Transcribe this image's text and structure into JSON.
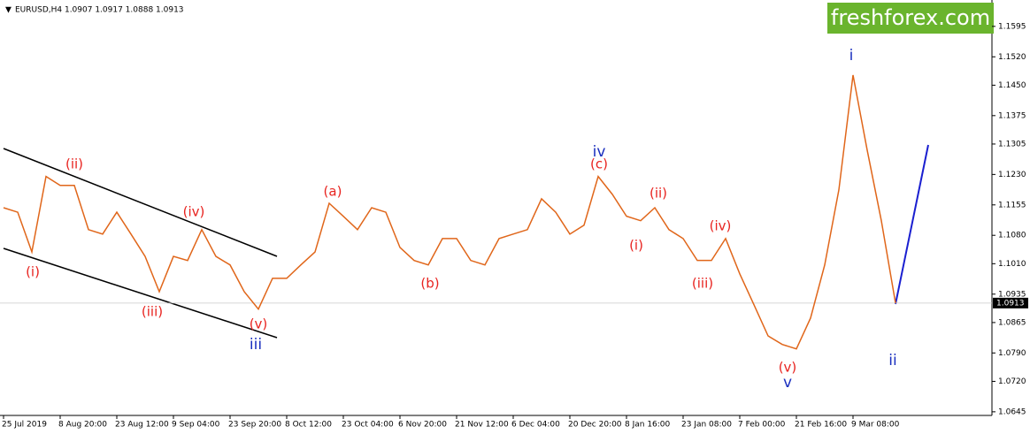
{
  "chart_data": {
    "type": "line",
    "title": "EURUSD,H4  1.0907 1.0917 1.0888 1.0913",
    "watermark": "freshforex.com",
    "color": "#e0661a",
    "categories": [
      "25 Jul 2019",
      null,
      null,
      null,
      "8 Aug 20:00",
      null,
      null,
      null,
      "23 Aug 12:00",
      null,
      null,
      null,
      "9 Sep 04:00",
      null,
      null,
      null,
      "23 Sep 20:00",
      null,
      null,
      null,
      "8 Oct 12:00",
      null,
      null,
      null,
      "23 Oct 04:00",
      null,
      null,
      null,
      "6 Nov 20:00",
      null,
      null,
      null,
      "21 Nov 12:00",
      null,
      null,
      null,
      "6 Dec 04:00",
      null,
      null,
      null,
      "20 Dec 20:00",
      null,
      null,
      null,
      "8 Jan 16:00",
      null,
      null,
      null,
      "23 Jan 08:00",
      null,
      null,
      null,
      "7 Feb 00:00",
      null,
      null,
      null,
      "21 Feb 16:00",
      null,
      null,
      null,
      "9 Mar 08:00",
      null,
      null,
      null
    ],
    "values": [
      1.1148,
      1.1137,
      1.1039,
      1.1225,
      1.1203,
      1.1203,
      1.1094,
      1.1083,
      1.1137,
      1.1083,
      1.1028,
      1.0941,
      1.1028,
      1.1018,
      1.1094,
      1.1028,
      1.1007,
      1.0941,
      1.0898,
      1.0974,
      1.0974,
      1.1007,
      1.1039,
      1.1159,
      1.1127,
      1.1094,
      1.1148,
      1.1137,
      1.105,
      1.1018,
      1.1007,
      1.1072,
      1.1072,
      1.1018,
      1.1007,
      1.1072,
      1.1083,
      1.1094,
      1.117,
      1.1137,
      1.1083,
      1.1105,
      1.1225,
      1.1181,
      1.1127,
      1.1116,
      1.1148,
      1.1094,
      1.1072,
      1.1018,
      1.1018,
      1.1072,
      1.0985,
      1.0909,
      1.0832,
      1.0811,
      1.08,
      1.0876,
      1.1007,
      1.1192,
      1.1475,
      1.129,
      1.1116,
      1.0913
    ],
    "ylim": [
      1.0636,
      1.166
    ],
    "yticks": [
      1.1595,
      {
        "value": 1.152,
        "label": "1.1520"
      },
      {
        "value": 1.145,
        "label": "1.1450"
      },
      1.1375,
      1.1305,
      {
        "value": 1.123,
        "label": "1.1230"
      },
      1.1155,
      {
        "value": 1.108,
        "label": "1.1080"
      },
      {
        "value": 1.101,
        "label": "1.1010"
      },
      1.0935,
      1.0865,
      {
        "value": 1.079,
        "label": "1.0790"
      },
      {
        "value": 1.072,
        "label": "1.0720"
      },
      1.0645
    ],
    "annotations": [
      {
        "text": "(i)",
        "color": "#e8231f"
      },
      {
        "text": "(ii)",
        "color": "#e8231f"
      },
      {
        "text": "(iii)",
        "color": "#e8231f"
      },
      {
        "text": "(iv)",
        "color": "#e8231f"
      },
      {
        "text": "(v)",
        "color": "#e8231f"
      },
      {
        "text": "iii",
        "color": "#1a2fbf"
      },
      {
        "text": "(a)",
        "color": "#e8231f"
      },
      {
        "text": "(b)",
        "color": "#e8231f"
      },
      {
        "text": "(c)",
        "color": "#e8231f"
      },
      {
        "text": "iv",
        "color": "#1a2fbf"
      },
      {
        "text": "(ii)",
        "color": "#e8231f"
      },
      {
        "text": "(i)",
        "color": "#e8231f"
      },
      {
        "text": "(iii)",
        "color": "#e8231f"
      },
      {
        "text": "(iv)",
        "color": "#e8231f"
      },
      {
        "text": "(v)",
        "color": "#e8231f"
      },
      {
        "text": "v",
        "color": "#1a2fbf"
      },
      {
        "text": "i",
        "color": "#1a2fbf"
      },
      {
        "text": "ii",
        "color": "#1a2fbf"
      }
    ]
  }
}
